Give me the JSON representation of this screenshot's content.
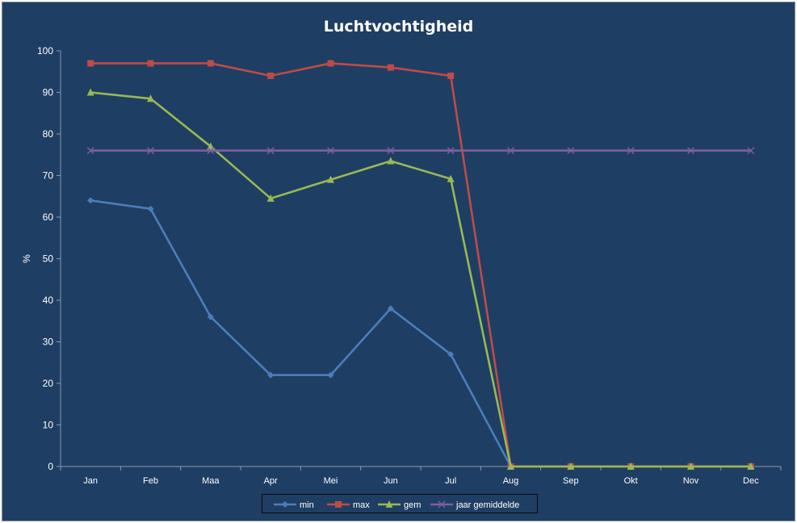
{
  "chart_data": {
    "type": "line",
    "title": "Luchtvochtigheid",
    "xlabel": "",
    "ylabel": "%",
    "ylim": [
      0,
      100
    ],
    "y_ticks": [
      0,
      10,
      20,
      30,
      40,
      50,
      60,
      70,
      80,
      90,
      100
    ],
    "categories": [
      "Jan",
      "Feb",
      "Maa",
      "Apr",
      "Mei",
      "Jun",
      "Jul",
      "Aug",
      "Sep",
      "Okt",
      "Nov",
      "Dec"
    ],
    "grid": false,
    "legend_position": "bottom",
    "series": [
      {
        "name": "min",
        "color": "#4a7ebb",
        "marker": "diamond",
        "values": [
          64,
          62,
          36,
          22,
          22,
          38,
          27,
          0,
          0,
          0,
          0,
          0
        ]
      },
      {
        "name": "max",
        "color": "#be4b48",
        "marker": "square",
        "values": [
          97,
          97,
          97,
          94,
          97,
          96,
          94,
          0,
          0,
          0,
          0,
          0
        ]
      },
      {
        "name": "gem",
        "color": "#98b954",
        "marker": "triangle",
        "values": [
          90,
          88.5,
          77,
          64.5,
          69,
          73.5,
          69.2,
          0,
          0,
          0,
          0,
          0
        ]
      },
      {
        "name": "jaar gemiddelde",
        "color": "#7d60a0",
        "marker": "x",
        "values": [
          76,
          76,
          76,
          76,
          76,
          76,
          76,
          76,
          76,
          76,
          76,
          76
        ]
      }
    ]
  }
}
